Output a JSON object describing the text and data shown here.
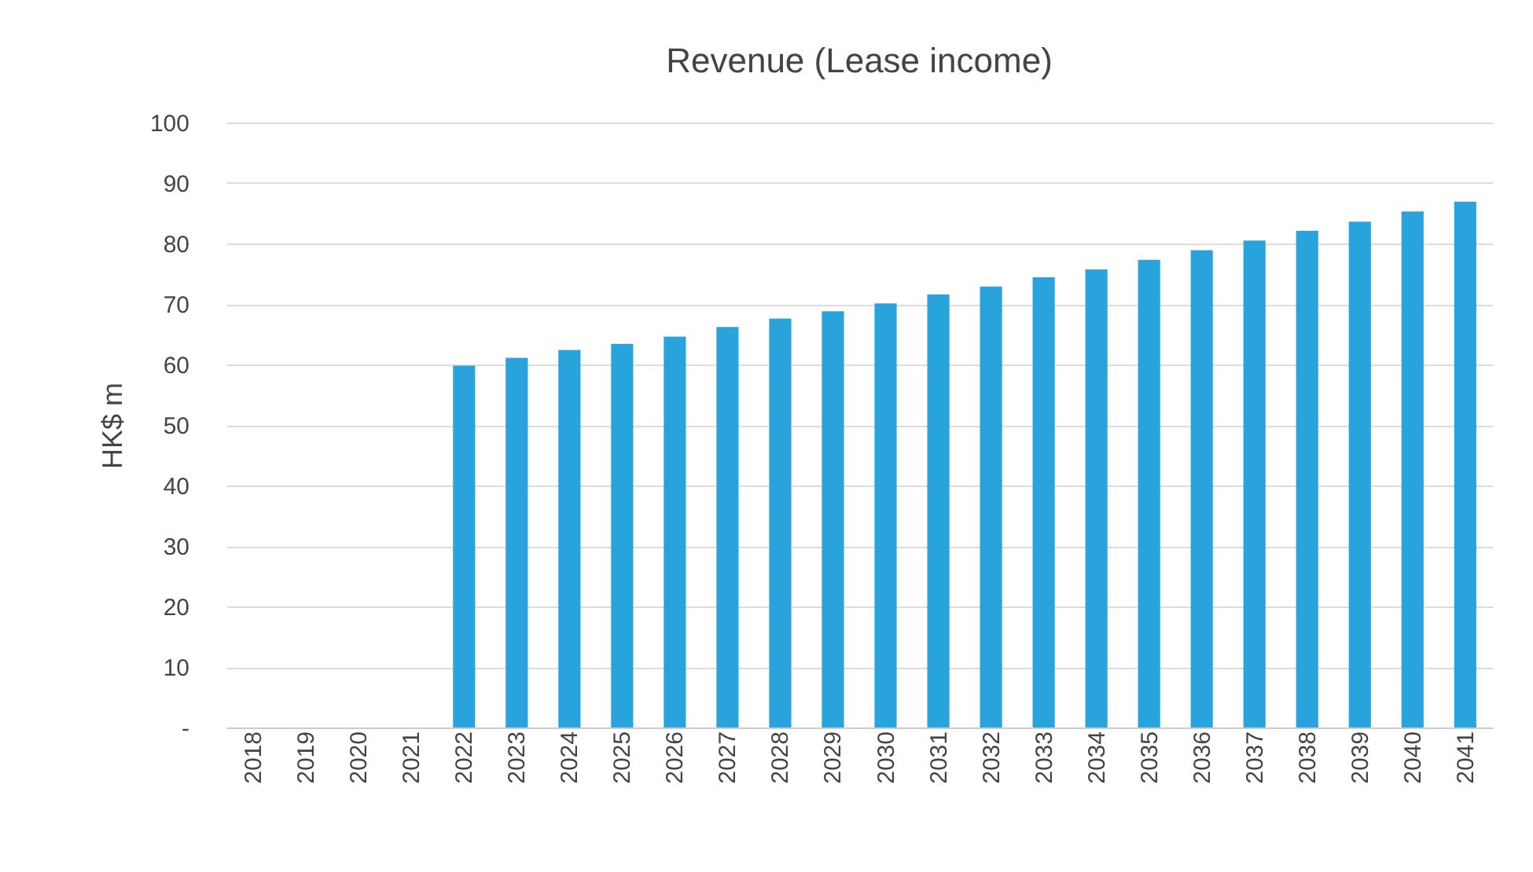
{
  "chart_data": {
    "type": "bar",
    "title": "Revenue (Lease income)",
    "ylabel": "HK$ m",
    "categories": [
      "2018",
      "2019",
      "2020",
      "2021",
      "2022",
      "2023",
      "2024",
      "2025",
      "2026",
      "2027",
      "2028",
      "2029",
      "2030",
      "2031",
      "2032",
      "2033",
      "2034",
      "2035",
      "2036",
      "2037",
      "2038",
      "2039",
      "2040",
      "2041"
    ],
    "values": [
      null,
      null,
      null,
      null,
      59.8,
      61.1,
      62.4,
      63.4,
      64.6,
      66.2,
      67.6,
      68.8,
      70.1,
      71.6,
      72.9,
      74.4,
      75.7,
      77.3,
      78.9,
      80.5,
      82.1,
      83.6,
      85.3,
      86.9
    ],
    "color": "#29a3dc",
    "ylim": [
      0,
      100
    ],
    "yticks": [
      {
        "value": 0,
        "label": "-"
      },
      10,
      20,
      30,
      40,
      50,
      60,
      70,
      80,
      90,
      100
    ],
    "grid": "y"
  }
}
